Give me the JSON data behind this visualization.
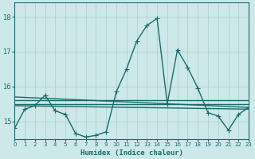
{
  "xlabel": "Humidex (Indice chaleur)",
  "bg_color": "#cce8e8",
  "grid_color": "#aacece",
  "line_color": "#1a6b6b",
  "xlim": [
    0,
    23
  ],
  "ylim": [
    14.5,
    18.4
  ],
  "yticks": [
    15,
    16,
    17,
    18
  ],
  "ytick_labels": [
    "15",
    "16",
    "17",
    "18"
  ],
  "xticks": [
    0,
    1,
    2,
    3,
    4,
    5,
    6,
    7,
    8,
    9,
    10,
    11,
    12,
    13,
    14,
    15,
    16,
    17,
    18,
    19,
    20,
    21,
    22,
    23
  ],
  "main_x": [
    0,
    1,
    2,
    3,
    4,
    5,
    6,
    7,
    8,
    9,
    10,
    11,
    12,
    13,
    14,
    15,
    16,
    17,
    18,
    19,
    20,
    21,
    22,
    23
  ],
  "main_y": [
    14.8,
    15.35,
    15.45,
    15.75,
    15.3,
    15.2,
    14.65,
    14.55,
    14.6,
    14.7,
    15.85,
    16.5,
    17.3,
    17.75,
    17.95,
    15.5,
    17.05,
    16.55,
    15.95,
    15.25,
    15.15,
    14.75,
    15.2,
    15.4
  ],
  "ref_lines": [
    {
      "x": [
        0,
        23
      ],
      "y": [
        15.6,
        15.6
      ]
    },
    {
      "x": [
        0,
        23
      ],
      "y": [
        15.7,
        15.4
      ]
    },
    {
      "x": [
        0,
        23
      ],
      "y": [
        15.5,
        15.5
      ]
    },
    {
      "x": [
        0,
        23
      ],
      "y": [
        15.45,
        15.35
      ]
    }
  ],
  "marker_size": 2.5,
  "line_width": 1.0
}
